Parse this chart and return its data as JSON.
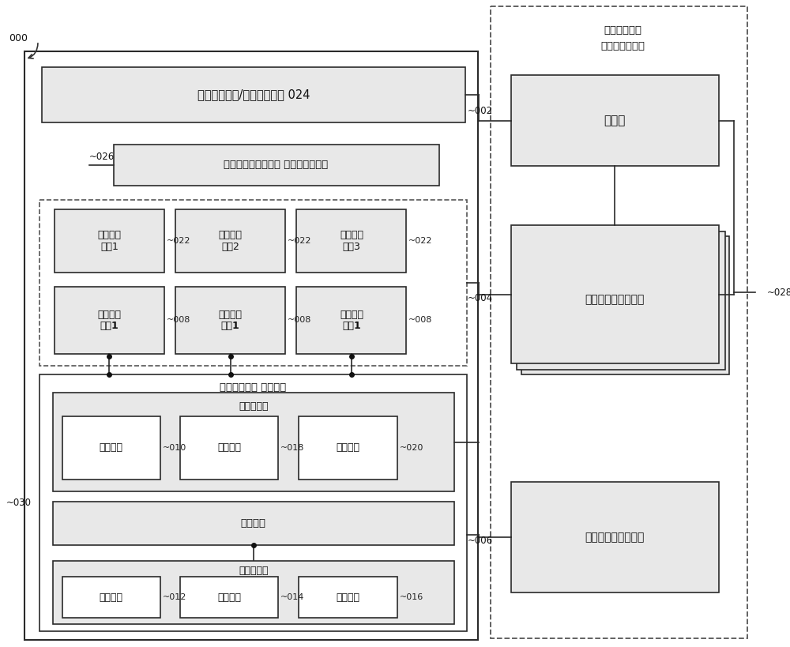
{
  "bg_color": "#ffffff",
  "line_color": "#2a2a2a",
  "gray_fill": "#e8e8e8",
  "white_fill": "#ffffff",
  "text_oss": "运营支撑系统/业务支撑系统 024",
  "text_service_desc": "服务、虚拟网络功能 和基础设施描述",
  "text_ems1": "网元管理\n系统1",
  "text_ems2": "网元管理\n系统2",
  "text_ems3": "网元管理\n系统3",
  "text_vnf1": "虚拟网络\n功能1",
  "text_vnf2": "虚拟网络\n功能1",
  "text_vnf3": "虚拟网络\n功能1",
  "text_nfvo_line1": "虚拟网络功能",
  "text_nfvo_line2": "管理和编制系统",
  "text_compiler": "编制器",
  "text_vnfm": "虚拟网络功能管理器",
  "text_vim": "虚拟基础设施管理器",
  "text_infra": "虚拟网络功能 基础设施",
  "text_vrl": "虚拟资源层",
  "text_vcompute": "虚拟计算",
  "text_vstorage": "虚拟存储",
  "text_vnetwork": "虚拟网络",
  "text_virt": "虚拟化层",
  "text_hwrl": "硬件资源层",
  "text_compute_hw": "计算硬件",
  "text_storage_hw": "存储硬件",
  "text_network_hw": "网络硬件",
  "label_000": "000",
  "label_026": "026",
  "label_022": "022",
  "label_008": "008",
  "label_002": "002",
  "label_004": "004",
  "label_006": "006",
  "label_028": "028",
  "label_030": "030",
  "label_010": "010",
  "label_018": "018",
  "label_020": "020",
  "label_012": "012",
  "label_014": "014",
  "label_016": "016"
}
